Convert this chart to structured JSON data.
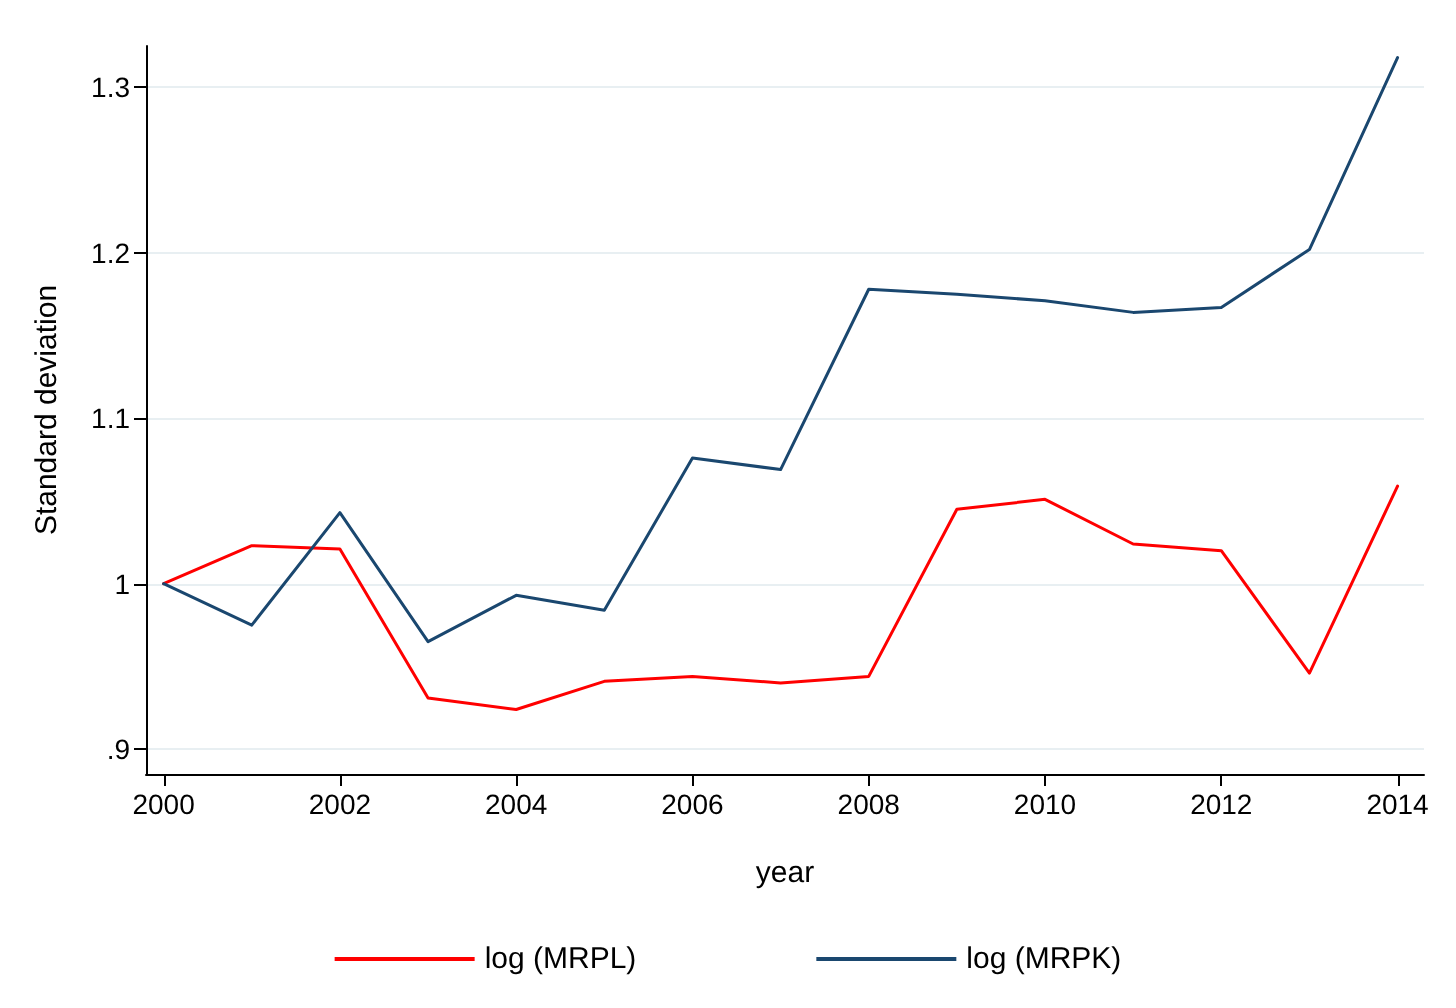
{
  "chart_data": {
    "type": "line",
    "xlabel": "year",
    "ylabel": "Standard deviation",
    "x": [
      2000,
      2001,
      2002,
      2003,
      2004,
      2005,
      2006,
      2007,
      2008,
      2009,
      2010,
      2011,
      2012,
      2013,
      2014
    ],
    "series": [
      {
        "name": "log (MRPL)",
        "color": "#ff0000",
        "values": [
          1.0,
          1.023,
          1.021,
          0.931,
          0.924,
          0.941,
          0.944,
          0.94,
          0.944,
          1.045,
          1.051,
          1.024,
          1.02,
          0.946,
          1.059
        ]
      },
      {
        "name": "log (MRPK)",
        "color": "#1a476f",
        "values": [
          1.0,
          0.975,
          1.043,
          0.965,
          0.993,
          0.984,
          1.076,
          1.069,
          1.178,
          1.175,
          1.171,
          1.164,
          1.167,
          1.202,
          1.318
        ]
      }
    ],
    "xlim": [
      1999.8,
      2014.3
    ],
    "xticks": [
      2000,
      2002,
      2004,
      2006,
      2008,
      2010,
      2012,
      2014
    ],
    "ylim": [
      0.885,
      1.325
    ],
    "yticks": [
      {
        "value": 0.9,
        "label": ".9"
      },
      {
        "value": 1,
        "label": "1"
      },
      1.1,
      1.2,
      1.3
    ],
    "grid": "y",
    "legend": "bottom",
    "marker": "none",
    "line_style": "solid"
  }
}
